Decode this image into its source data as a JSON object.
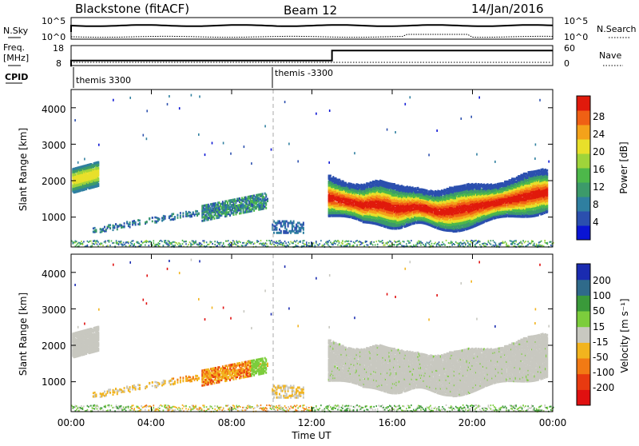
{
  "header": {
    "station": "Blackstone (fitACF)",
    "beam": "Beam 12",
    "date": "14/Jan/2016"
  },
  "top_panels": {
    "nsky_label": "N.Sky",
    "nsky_ticks": [
      "10^5",
      "10^0"
    ],
    "nsearch_label": "N.Search",
    "nsearch_ticks": [
      "10^5",
      "10^0"
    ],
    "freq_label": "Freq.",
    "freq_unit": "[MHz]",
    "freq_ticks": [
      "18",
      "8"
    ],
    "nave_label": "Nave",
    "nave_ticks": [
      "60",
      "0"
    ],
    "cpid_label": "CPID",
    "cpid_segments": [
      {
        "name": "themis 3300",
        "start_hour": 0
      },
      {
        "name": "themis -3300",
        "start_hour": 10
      }
    ],
    "freq_mhz": {
      "before_13h": 10.5,
      "after_13h": 15.5
    }
  },
  "power_panel": {
    "ylabel": "Slant Range [km]",
    "yticks": [
      "4000",
      "3000",
      "2000",
      "1000"
    ],
    "colorbar_label": "Power [dB]",
    "colorbar_ticks": [
      "28",
      "24",
      "20",
      "16",
      "12",
      "8",
      "4"
    ],
    "colorbar_colors": [
      "#0a14d4",
      "#2b4fae",
      "#2f7fa0",
      "#3c9a6a",
      "#4db84a",
      "#9fd43a",
      "#e8e02a",
      "#f4a21a",
      "#ef6014",
      "#e01a0c"
    ]
  },
  "velocity_panel": {
    "ylabel": "Slant Range [km]",
    "yticks": [
      "4000",
      "3000",
      "2000",
      "1000"
    ],
    "colorbar_label": "Velocity [m s⁻¹]",
    "colorbar_ticks": [
      "200",
      "100",
      "50",
      "15",
      "-15",
      "-50",
      "-100",
      "-200"
    ],
    "colorbar_colors": [
      "#1a2bb0",
      "#2f6a8a",
      "#3a9a3a",
      "#7ccd3c",
      "#c8c8c0",
      "#f2b41e",
      "#f27a14",
      "#e83a10",
      "#e01010"
    ]
  },
  "xaxis": {
    "label": "Time UT",
    "ticks": [
      "00:00",
      "04:00",
      "08:00",
      "12:00",
      "16:00",
      "20:00",
      "00:00"
    ]
  },
  "chart_data": {
    "type": "heatmap",
    "x_range_hours": [
      0,
      24
    ],
    "y_range_km": [
      180,
      4500
    ],
    "echo_regions": [
      {
        "name": "early",
        "t": [
          0.0,
          1.3
        ],
        "range_km": [
          1650,
          2400
        ],
        "power_db": 18,
        "velocity": 0
      },
      {
        "name": "ground",
        "t": [
          0.0,
          24.0
        ],
        "range_km": [
          180,
          420
        ],
        "power_db": 10,
        "velocity": 30
      },
      {
        "name": "mid",
        "t": [
          6.5,
          9.7
        ],
        "range_km": [
          1000,
          1600
        ],
        "power_db": 9,
        "velocity": -60
      },
      {
        "name": "main",
        "t": [
          13.0,
          23.8
        ],
        "range_km": [
          900,
          2200
        ],
        "power_db": 24,
        "velocity": 0
      }
    ]
  }
}
